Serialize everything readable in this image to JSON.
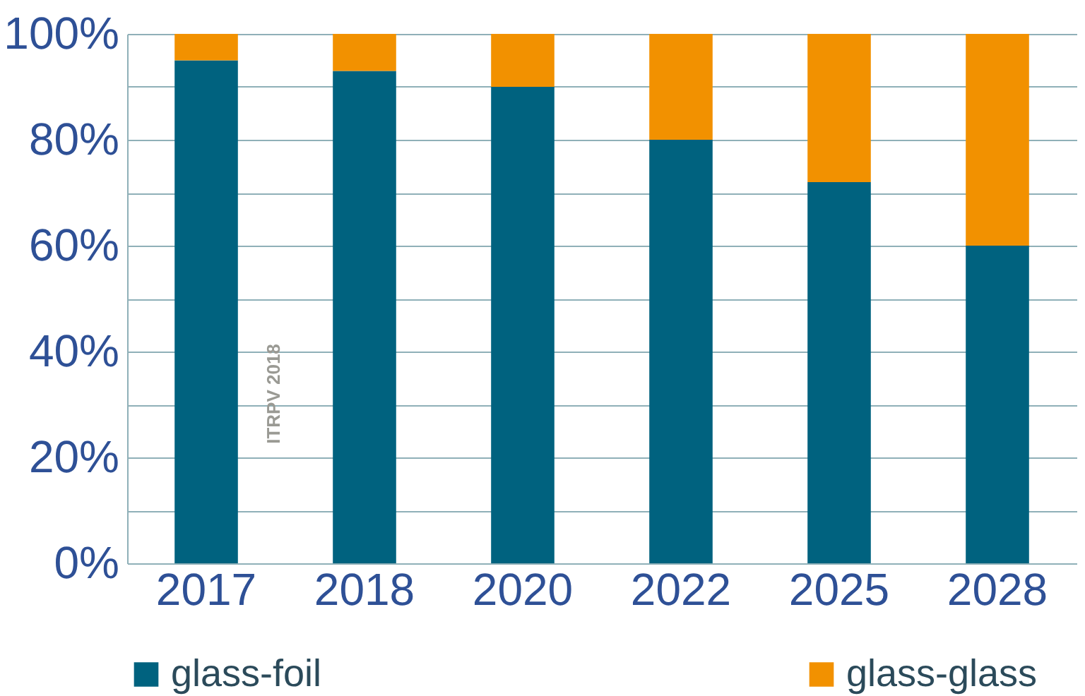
{
  "chart_data": {
    "type": "bar",
    "stacked": true,
    "categories": [
      "2017",
      "2018",
      "2020",
      "2022",
      "2025",
      "2028"
    ],
    "series": [
      {
        "name": "glass-foil",
        "color": "#00627f",
        "values": [
          95,
          93,
          90,
          80,
          72,
          60
        ]
      },
      {
        "name": "glass-glass",
        "color": "#f29100",
        "values": [
          5,
          7,
          10,
          20,
          28,
          40
        ]
      }
    ],
    "ylim": [
      0,
      100
    ],
    "yticks": [
      {
        "value": 0,
        "label": "0%"
      },
      {
        "value": 10,
        "label": null
      },
      {
        "value": 20,
        "label": "20%"
      },
      {
        "value": 30,
        "label": null
      },
      {
        "value": 40,
        "label": "40%"
      },
      {
        "value": 50,
        "label": null
      },
      {
        "value": 60,
        "label": "60%"
      },
      {
        "value": 70,
        "label": null
      },
      {
        "value": 80,
        "label": "80%"
      },
      {
        "value": 90,
        "label": null
      },
      {
        "value": 100,
        "label": "100%"
      }
    ],
    "grid": "y",
    "legend": "bottom",
    "annotations": [
      "ITRPV 2018"
    ]
  }
}
